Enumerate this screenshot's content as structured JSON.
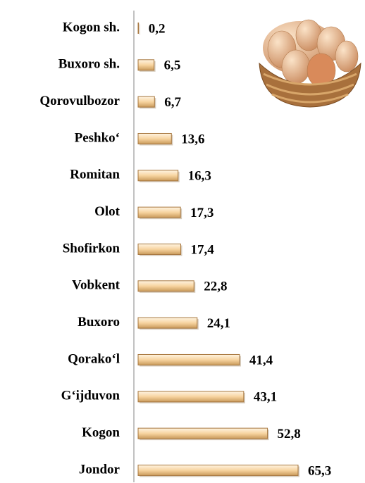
{
  "chart_data": {
    "type": "bar",
    "orientation": "horizontal",
    "categories": [
      "Kogon sh.",
      "Buxoro sh.",
      "Qorovulbozor",
      "Peshko‘",
      "Romitan",
      "Olot",
      "Shofirkon",
      "Vobkent",
      "Buxoro",
      "Qorako‘l",
      "G‘ijduvon",
      "Kogon",
      "Jondor"
    ],
    "values": [
      0.2,
      6.5,
      6.7,
      13.6,
      16.3,
      17.3,
      17.4,
      22.8,
      24.1,
      41.4,
      43.1,
      52.8,
      65.3
    ],
    "value_labels": [
      "0,2",
      "6,5",
      "6,7",
      "13,6",
      "16,3",
      "17,3",
      "17,4",
      "22,8",
      "24,1",
      "41,4",
      "43,1",
      "52,8",
      "65,3"
    ],
    "color": "#f7d4a0"
  }
}
